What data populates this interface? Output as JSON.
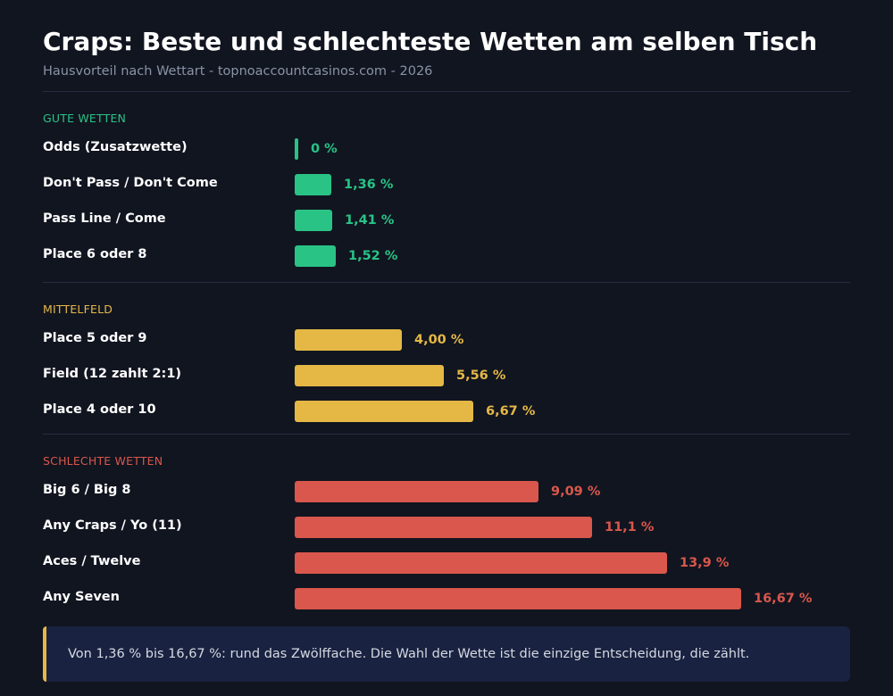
{
  "header": {
    "title": "Craps: Beste und schlechteste Wetten am selben Tisch",
    "subtitle": "Hausvorteil nach Wettart - topnoaccountcasinos.com - 2026"
  },
  "colors": {
    "good": "#29c386",
    "mid": "#e5b846",
    "bad": "#d9574c",
    "background": "#111520",
    "note_background": "#192240"
  },
  "chart_data": {
    "type": "bar",
    "orientation": "horizontal",
    "title": "Craps: Beste und schlechteste Wetten am selben Tisch",
    "subtitle": "Hausvorteil nach Wettart - topnoaccountcasinos.com - 2026",
    "value_unit": "%",
    "xlim": [
      0,
      16.67
    ],
    "grid": false,
    "groups": [
      {
        "name": "GUTE WETTEN",
        "color": "#29c386",
        "bars": [
          {
            "label": "Odds (Zusatzwette)",
            "value": 0,
            "value_label": "0 %"
          },
          {
            "label": "Don't Pass / Don't Come",
            "value": 1.36,
            "value_label": "1,36 %"
          },
          {
            "label": "Pass Line / Come",
            "value": 1.41,
            "value_label": "1,41 %"
          },
          {
            "label": "Place 6 oder 8",
            "value": 1.52,
            "value_label": "1,52 %"
          }
        ]
      },
      {
        "name": "MITTELFELD",
        "color": "#e5b846",
        "bars": [
          {
            "label": "Place 5 oder 9",
            "value": 4.0,
            "value_label": "4,00 %"
          },
          {
            "label": "Field (12 zahlt 2:1)",
            "value": 5.56,
            "value_label": "5,56 %"
          },
          {
            "label": "Place 4 oder 10",
            "value": 6.67,
            "value_label": "6,67 %"
          }
        ]
      },
      {
        "name": "SCHLECHTE WETTEN",
        "color": "#d9574c",
        "bars": [
          {
            "label": "Big 6 / Big 8",
            "value": 9.09,
            "value_label": "9,09 %"
          },
          {
            "label": "Any Craps / Yo (11)",
            "value": 11.1,
            "value_label": "11,1 %"
          },
          {
            "label": "Aces / Twelve",
            "value": 13.9,
            "value_label": "13,9 %"
          },
          {
            "label": "Any Seven",
            "value": 16.67,
            "value_label": "16,67 %"
          }
        ]
      }
    ]
  },
  "note": {
    "text": "Von 1,36 % bis 16,67 %: rund das Zwölffache. Die Wahl der Wette ist die einzige Entscheidung, die zählt."
  }
}
